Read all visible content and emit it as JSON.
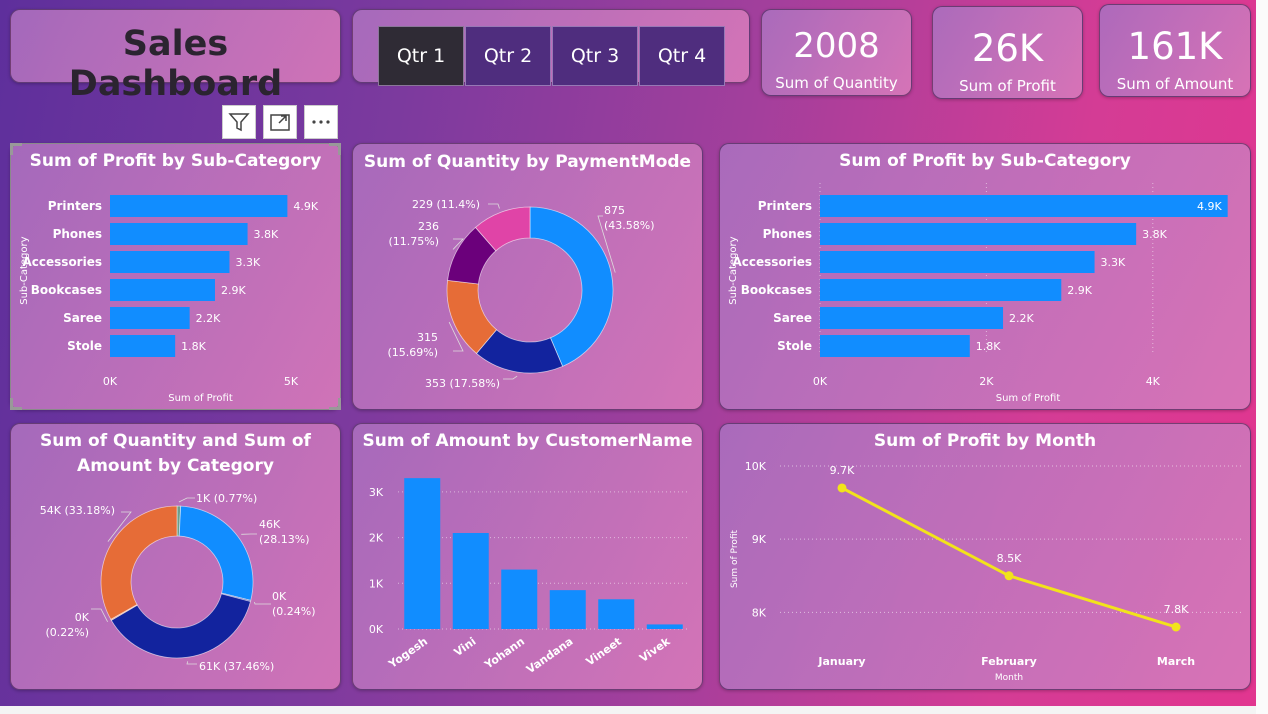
{
  "header": {
    "title": "Sales Dashboard"
  },
  "slicer": {
    "buttons": [
      "Qtr 1",
      "Qtr 2",
      "Qtr 3",
      "Qtr 4"
    ],
    "selected": 0
  },
  "kpis": [
    {
      "value": "2008",
      "label": "Sum of Quantity"
    },
    {
      "value": "26K",
      "label": "Sum of Profit"
    },
    {
      "value": "161K",
      "label": "Sum of Amount"
    }
  ],
  "colors": {
    "bar": "#118dff",
    "line": "#f2e31b"
  },
  "icons": [
    "filter-icon",
    "focus-mode-icon",
    "more-options-icon"
  ],
  "chart_data": [
    {
      "id": "profit_subcat_left",
      "type": "bar",
      "orientation": "horizontal",
      "title": "Sum of Profit by Sub-Category",
      "categories": [
        "Printers",
        "Phones",
        "Accessories",
        "Bookcases",
        "Saree",
        "Stole"
      ],
      "values": [
        4.9,
        3.8,
        3.3,
        2.9,
        2.2,
        1.8
      ],
      "value_labels": [
        "4.9K",
        "3.8K",
        "3.3K",
        "2.9K",
        "2.2K",
        "1.8K"
      ],
      "xlabel": "Sum of Profit",
      "ylabel": "Sub-Category",
      "xlim": [
        0,
        5
      ],
      "xticks": [
        "0K",
        "5K"
      ]
    },
    {
      "id": "qty_paymentmode",
      "type": "pie",
      "donut": true,
      "title": "Sum of Quantity by PaymentMode",
      "values": [
        875,
        353,
        315,
        236,
        229
      ],
      "labels": [
        "875\n(43.58%)",
        "353 (17.58%)",
        "315\n(15.69%)",
        "236\n(11.75%)",
        "229 (11.4%)"
      ],
      "colors": [
        "#118dff",
        "#12239e",
        "#e66c37",
        "#6b007b",
        "#e044a7"
      ]
    },
    {
      "id": "profit_subcat_right",
      "type": "bar",
      "orientation": "horizontal",
      "title": "Sum of Profit by Sub-Category",
      "categories": [
        "Printers",
        "Phones",
        "Accessories",
        "Bookcases",
        "Saree",
        "Stole"
      ],
      "values": [
        4.9,
        3.8,
        3.3,
        2.9,
        2.2,
        1.8
      ],
      "value_labels": [
        "4.9K",
        "3.8K",
        "3.3K",
        "2.9K",
        "2.2K",
        "1.8K"
      ],
      "xlabel": "Sum of Profit",
      "ylabel": "Sub-Category",
      "xlim": [
        0,
        5
      ],
      "xticks": [
        "0K",
        "2K",
        "4K"
      ],
      "xtick_values": [
        0,
        2,
        4
      ],
      "grid": true
    },
    {
      "id": "qty_amount_category",
      "type": "pie",
      "donut": true,
      "title": "Sum of Quantity and Sum of Amount by Category",
      "title_lines": [
        "Sum of Quantity and Sum of",
        "Amount by Category"
      ],
      "values": [
        0.77,
        28.13,
        0.24,
        37.46,
        0.22,
        33.18
      ],
      "labels": [
        "1K (0.77%)",
        "46K\n(28.13%)",
        "0K\n(0.24%)",
        "61K (37.46%)",
        "0K\n(0.22%)",
        "54K (33.18%)"
      ],
      "colors": [
        "#6b9e8a",
        "#118dff",
        "#12239e",
        "#12239e",
        "#e66c37",
        "#e66c37"
      ]
    },
    {
      "id": "amount_customer",
      "type": "bar",
      "orientation": "vertical",
      "title": "Sum of Amount by CustomerName",
      "categories": [
        "Yogesh",
        "Vini",
        "Yohann",
        "Vandana",
        "Vineet",
        "Vivek"
      ],
      "values": [
        3.3,
        2.1,
        1.3,
        0.85,
        0.65,
        0.1
      ],
      "ylim": [
        0,
        3.5
      ],
      "yticks": [
        "0K",
        "1K",
        "2K",
        "3K"
      ],
      "ytick_values": [
        0,
        1,
        2,
        3
      ],
      "grid": true
    },
    {
      "id": "profit_month",
      "type": "line",
      "title": "Sum of Profit by Month",
      "categories": [
        "January",
        "February",
        "March"
      ],
      "values": [
        9.7,
        8.5,
        7.8
      ],
      "value_labels": [
        "9.7K",
        "8.5K",
        "7.8K"
      ],
      "xlabel": "Month",
      "ylabel": "Sum of Profit",
      "ylim": [
        7.8,
        10
      ],
      "yticks": [
        "8K",
        "9K",
        "10K"
      ],
      "ytick_values": [
        8,
        9,
        10
      ],
      "grid": true
    }
  ]
}
